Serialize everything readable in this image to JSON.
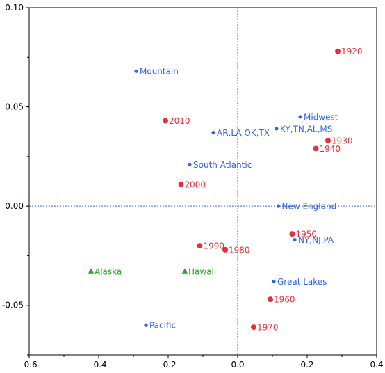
{
  "chart_data": {
    "type": "scatter",
    "title": "",
    "xlabel": "",
    "ylabel": "",
    "xlim": [
      -0.6,
      0.4
    ],
    "ylim": [
      -0.075,
      0.1
    ],
    "x_ticks": [
      -0.6,
      -0.4,
      -0.2,
      0.0,
      0.2,
      0.4
    ],
    "x_tick_labels": [
      "-0.6",
      "-0.4",
      "-0.2",
      "0.0",
      "0.2",
      "0.4"
    ],
    "y_ticks": [
      -0.05,
      0.0,
      0.05,
      0.1
    ],
    "y_tick_labels": [
      "-0.05",
      "0.00",
      "0.05",
      "0.10"
    ],
    "grid": false,
    "reference_lines": {
      "x": 0,
      "y": 0
    },
    "series": [
      {
        "name": "",
        "marker": "circle",
        "color": "#e8303a",
        "points": [
          {
            "label": "1920",
            "x": 0.288,
            "y": 0.078
          },
          {
            "label": "1930",
            "x": 0.26,
            "y": 0.033
          },
          {
            "label": "1940",
            "x": 0.225,
            "y": 0.029
          },
          {
            "label": "1950",
            "x": 0.157,
            "y": -0.014
          },
          {
            "label": "1960",
            "x": 0.094,
            "y": -0.047
          },
          {
            "label": "1970",
            "x": 0.046,
            "y": -0.061
          },
          {
            "label": "1980",
            "x": -0.036,
            "y": -0.022
          },
          {
            "label": "1990",
            "x": -0.109,
            "y": -0.02
          },
          {
            "label": "2000",
            "x": -0.163,
            "y": 0.011
          },
          {
            "label": "2010",
            "x": -0.208,
            "y": 0.043
          }
        ]
      },
      {
        "name": "",
        "marker": "small-circle",
        "color": "#3366dd",
        "points": [
          {
            "label": "Mountain",
            "x": -0.292,
            "y": 0.068
          },
          {
            "label": "Midwest",
            "x": 0.18,
            "y": 0.045
          },
          {
            "label": "KY,TN,AL,MS",
            "x": 0.112,
            "y": 0.039
          },
          {
            "label": "AR,LA,OK,TX",
            "x": -0.07,
            "y": 0.037
          },
          {
            "label": "South Atlantic",
            "x": -0.138,
            "y": 0.021
          },
          {
            "label": "New England",
            "x": 0.117,
            "y": 0.0
          },
          {
            "label": "NY,NJ,PA",
            "x": 0.164,
            "y": -0.017
          },
          {
            "label": "Great Lakes",
            "x": 0.104,
            "y": -0.038
          },
          {
            "label": "Pacific",
            "x": -0.264,
            "y": -0.06
          }
        ]
      },
      {
        "name": "",
        "marker": "triangle",
        "color": "#22aa22",
        "points": [
          {
            "label": "Alaska",
            "x": -0.422,
            "y": -0.033
          },
          {
            "label": "Hawaii",
            "x": -0.152,
            "y": -0.033
          }
        ]
      }
    ]
  }
}
